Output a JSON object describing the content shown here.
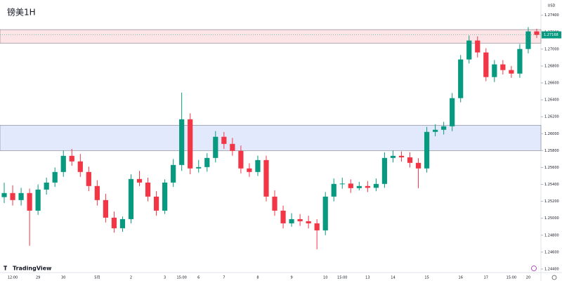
{
  "chart_data": {
    "type": "candlestick",
    "title": "镑美1H",
    "currency": "USD",
    "brand": "TradingView",
    "categories": [
      null,
      "12:00",
      null,
      null,
      "29",
      null,
      null,
      "30",
      null,
      null,
      null,
      "5月",
      null,
      null,
      null,
      "2",
      null,
      null,
      null,
      "3",
      null,
      "15:00",
      null,
      "6",
      null,
      null,
      "7",
      null,
      null,
      null,
      "8",
      null,
      null,
      null,
      "9",
      null,
      null,
      null,
      "10",
      null,
      "15:00",
      null,
      null,
      "13",
      null,
      null,
      "14",
      null,
      null,
      null,
      "15",
      null,
      null,
      null,
      "16",
      null,
      null,
      "17",
      null,
      null,
      "15:00",
      null,
      "20",
      null
    ],
    "open": [
      1.2525,
      1.25298,
      1.25215,
      1.25298,
      1.2509,
      1.25339,
      1.25422,
      1.25547,
      1.25738,
      1.25672,
      1.25547,
      1.25381,
      1.25215,
      1.25007,
      1.24882,
      1.2499,
      1.25464,
      1.25422,
      1.25256,
      1.2509,
      1.25422,
      1.2563,
      1.2617,
      1.25589,
      1.25605,
      1.25713,
      1.25963,
      1.25879,
      1.25796,
      1.25589,
      1.25547,
      1.25688,
      1.25256,
      1.2509,
      1.2494,
      1.2499,
      1.24965,
      1.2494,
      1.24857,
      1.25256,
      1.25406,
      1.2541,
      1.25356,
      1.25381,
      1.2536,
      1.25406,
      1.25713,
      1.25738,
      1.2572,
      1.25655,
      1.25589,
      1.26021,
      1.26046,
      1.26087,
      1.2642,
      1.26877,
      1.27101,
      1.2696,
      1.26669,
      1.26819,
      1.26752,
      1.2671,
      1.27001,
      1.27209
    ],
    "high": [
      1.2542,
      1.2539,
      1.2536,
      1.2535,
      1.254,
      1.2548,
      1.256,
      1.258,
      1.2582,
      1.2576,
      1.2561,
      1.2545,
      1.2529,
      1.2508,
      1.2502,
      1.2552,
      1.2556,
      1.2548,
      1.2532,
      1.2546,
      1.257,
      1.26486,
      1.2624,
      1.2569,
      1.2577,
      1.2603,
      1.2602,
      1.2595,
      1.2586,
      1.2565,
      1.2574,
      1.2574,
      1.2533,
      1.2515,
      1.2506,
      1.2505,
      1.2503,
      1.2499,
      1.2531,
      1.2547,
      1.2548,
      1.2546,
      1.2543,
      1.2544,
      1.2547,
      1.2578,
      1.258,
      1.2579,
      1.2578,
      1.2571,
      1.2608,
      1.2611,
      1.2614,
      1.2648,
      1.2693,
      1.2716,
      1.2715,
      1.2701,
      1.2687,
      1.2687,
      1.268,
      1.2706,
      1.2726,
      1.2724
    ],
    "low": [
      1.2518,
      1.2515,
      1.2515,
      1.24675,
      1.2504,
      1.2528,
      1.2537,
      1.2549,
      1.2562,
      1.2549,
      1.2532,
      1.2515,
      1.2495,
      1.2483,
      1.2484,
      1.2494,
      1.2538,
      1.252,
      1.2503,
      1.2505,
      1.2537,
      1.2556,
      1.2552,
      1.2554,
      1.2555,
      1.2566,
      1.2582,
      1.2574,
      1.2553,
      1.2549,
      1.255,
      1.252,
      1.2503,
      1.2488,
      1.249,
      1.2491,
      1.2488,
      1.24633,
      1.248,
      1.252,
      1.2535,
      1.253,
      1.2533,
      1.2531,
      1.2532,
      1.2536,
      1.2566,
      1.2567,
      1.256,
      1.25356,
      1.2554,
      1.2597,
      1.2599,
      1.2603,
      1.2637,
      1.2683,
      1.269,
      1.2662,
      1.2661,
      1.267,
      1.2666,
      1.2666,
      1.2695,
      1.2713
    ],
    "close": [
      1.25298,
      1.25215,
      1.25298,
      1.2509,
      1.25339,
      1.25422,
      1.25547,
      1.25738,
      1.25672,
      1.25547,
      1.25381,
      1.25215,
      1.25007,
      1.24882,
      1.2499,
      1.25464,
      1.25422,
      1.25256,
      1.2509,
      1.25422,
      1.2563,
      1.2617,
      1.25589,
      1.25605,
      1.25713,
      1.25963,
      1.25879,
      1.25796,
      1.25589,
      1.25547,
      1.25688,
      1.25256,
      1.2509,
      1.2494,
      1.2499,
      1.24965,
      1.2494,
      1.24857,
      1.25256,
      1.25406,
      1.2541,
      1.25356,
      1.25381,
      1.2536,
      1.25406,
      1.25713,
      1.25738,
      1.2572,
      1.25655,
      1.25589,
      1.26021,
      1.26046,
      1.26087,
      1.2642,
      1.26877,
      1.27101,
      1.2696,
      1.26669,
      1.26819,
      1.26752,
      1.2671,
      1.27001,
      1.27209,
      1.27168
    ],
    "up_color": "#089981",
    "down_color": "#f23645",
    "zones": [
      {
        "from": 1.2707,
        "to": 1.2723,
        "color": "#fde4e6"
      },
      {
        "from": 1.258,
        "to": 1.261,
        "color": "#e3e9fd"
      }
    ],
    "last_price": {
      "value": 1.27168,
      "label": "1.27168"
    },
    "ylim": [
      1.243,
      1.2758
    ],
    "yticks": [
      {
        "value": 1.244,
        "label": "1.24400"
      },
      {
        "value": 1.246,
        "label": "1.24600"
      },
      {
        "value": 1.248,
        "label": "1.24800"
      },
      {
        "value": 1.25,
        "label": "1.25000"
      },
      {
        "value": 1.252,
        "label": "1.25200"
      },
      {
        "value": 1.254,
        "label": "1.25400"
      },
      {
        "value": 1.256,
        "label": "1.25600"
      },
      {
        "value": 1.258,
        "label": "1.25800"
      },
      {
        "value": 1.26,
        "label": "1.26000"
      },
      {
        "value": 1.262,
        "label": "1.26200"
      },
      {
        "value": 1.264,
        "label": "1.26400"
      },
      {
        "value": 1.266,
        "label": "1.26600"
      },
      {
        "value": 1.268,
        "label": "1.26800"
      },
      {
        "value": 1.27,
        "label": "1.27000"
      },
      {
        "value": 1.272,
        "label": "1.27200"
      },
      {
        "value": 1.274,
        "label": "1.27400"
      }
    ],
    "grid": false
  }
}
